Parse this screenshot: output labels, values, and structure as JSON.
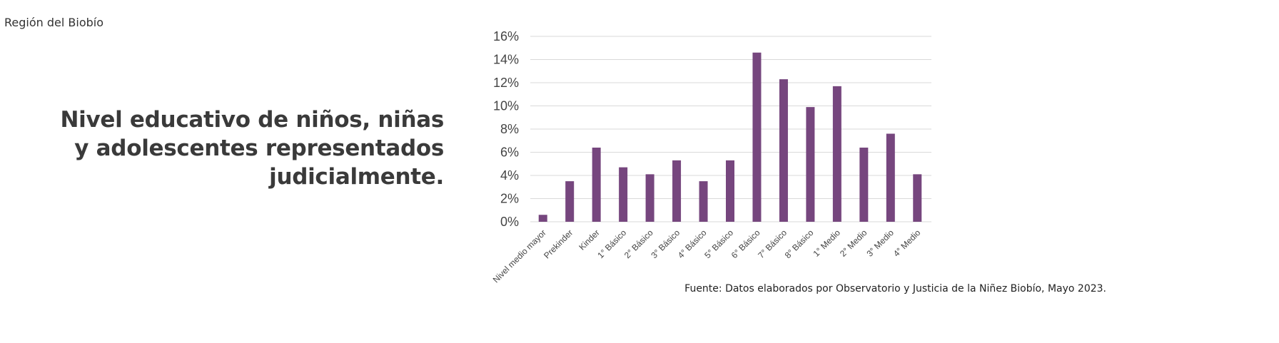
{
  "header": {
    "region": "Región del Biobío"
  },
  "title": "Nivel educativo de niños, niñas y adolescentes representados judicialmente.",
  "source": "Fuente: Datos elaborados por Observatorio y Justicia de la Niñez Biobío, Mayo 2023.",
  "colors": {
    "bar": "#76467e",
    "grid": "#d9d9d9"
  },
  "chart_data": {
    "type": "bar",
    "title": "Nivel educativo de niños, niñas y adolescentes representados judicialmente.",
    "xlabel": "",
    "ylabel": "",
    "ylim": [
      0,
      16
    ],
    "yticks": [
      "0%",
      "2%",
      "4%",
      "6%",
      "8%",
      "10%",
      "12%",
      "14%",
      "16%"
    ],
    "grid": true,
    "legend": "none",
    "categories": [
      "Nivel medio mayor",
      "Prekinder",
      "Kinder",
      "1° Básico",
      "2° Básico",
      "3° Básico",
      "4° Básico",
      "5° Básico",
      "6° Básico",
      "7° Básico",
      "8° Básico",
      "1° Medio",
      "2° Medio",
      "3° Medio",
      "4° Medio"
    ],
    "values": [
      0.6,
      3.5,
      6.4,
      4.7,
      4.1,
      5.3,
      3.5,
      5.3,
      14.6,
      12.3,
      9.9,
      11.7,
      6.4,
      7.6,
      4.1
    ]
  }
}
